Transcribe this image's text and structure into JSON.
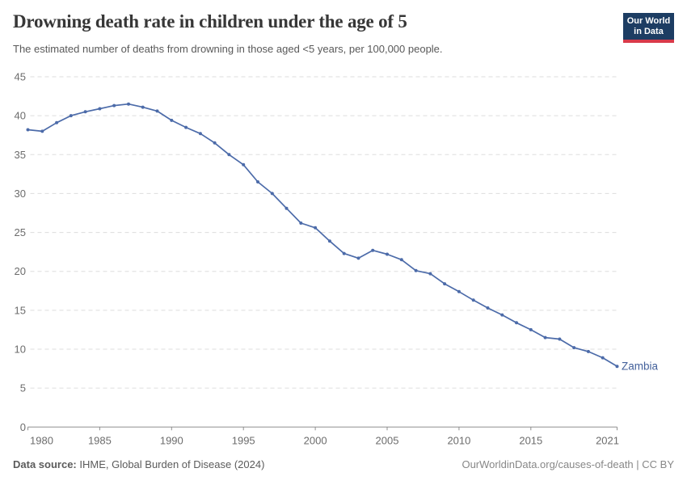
{
  "header": {
    "title": "Drowning death rate in children under the age of 5",
    "subtitle": "The estimated number of deaths from drowning in those aged <5 years, per 100,000 people."
  },
  "logo": {
    "line1": "Our World",
    "line2": "in Data",
    "bg_color": "#1d3d63",
    "bar_color": "#d93a4a"
  },
  "footer": {
    "source_label": "Data source:",
    "source_value": " IHME, Global Burden of Disease (2024)",
    "credit": "OurWorldinData.org/causes-of-death | CC BY"
  },
  "chart_data": {
    "type": "line",
    "title": "Drowning death rate in children under the age of 5",
    "subtitle": "The estimated number of deaths from drowning in those aged <5 years, per 100,000 people.",
    "x": [
      1980,
      1981,
      1982,
      1983,
      1984,
      1985,
      1986,
      1987,
      1988,
      1989,
      1990,
      1991,
      1992,
      1993,
      1994,
      1995,
      1996,
      1997,
      1998,
      1999,
      2000,
      2001,
      2002,
      2003,
      2004,
      2005,
      2006,
      2007,
      2008,
      2009,
      2010,
      2011,
      2012,
      2013,
      2014,
      2015,
      2016,
      2017,
      2018,
      2019,
      2020,
      2021
    ],
    "series": [
      {
        "name": "Zambia",
        "color": "#4c6ba9",
        "label_color": "#44619b",
        "values": [
          38.2,
          38.0,
          39.1,
          40.0,
          40.5,
          40.9,
          41.3,
          41.5,
          41.1,
          40.6,
          39.4,
          38.5,
          37.7,
          36.5,
          35.0,
          33.7,
          31.5,
          30.0,
          28.1,
          26.2,
          25.6,
          23.9,
          22.3,
          21.7,
          22.7,
          22.2,
          21.5,
          20.1,
          19.7,
          18.4,
          17.4,
          16.3,
          15.3,
          14.4,
          13.4,
          12.5,
          11.5,
          11.3,
          10.2,
          9.7,
          8.9,
          7.8
        ]
      }
    ],
    "xlim": [
      1980,
      2021
    ],
    "ylim": [
      0,
      45
    ],
    "x_ticks": [
      1980,
      1985,
      1990,
      1995,
      2000,
      2005,
      2010,
      2015,
      2021
    ],
    "y_ticks": [
      0,
      5,
      10,
      15,
      20,
      25,
      30,
      35,
      40,
      45
    ],
    "grid": "horizontal-dashed",
    "legend_position": "end-of-line-label",
    "axis_color": "#8f8f8f",
    "grid_color": "#dddddd",
    "tick_label_color": "#6c6c6c"
  }
}
